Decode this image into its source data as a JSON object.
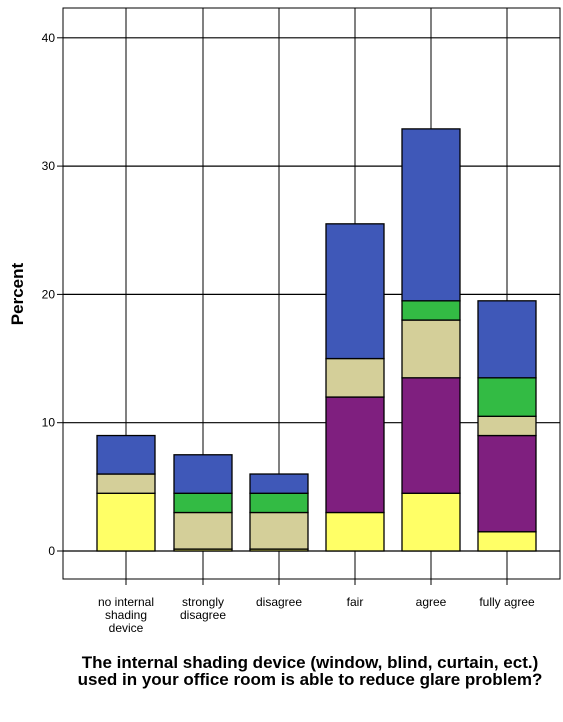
{
  "chart_data": {
    "type": "bar",
    "stacked": true,
    "xlabel": "The internal shading device (window, blind, curtain, ect.) used in your office room is able to reduce glare problem?",
    "ylabel": "Percent",
    "ylim": [
      0,
      42
    ],
    "yticks": [
      0,
      10,
      20,
      30,
      40
    ],
    "grid": true,
    "categories": [
      [
        "no internal",
        "shading",
        "device"
      ],
      [
        "strongly",
        "disagree"
      ],
      [
        "disagree"
      ],
      [
        "fair"
      ],
      [
        "agree"
      ],
      [
        "fully agree"
      ]
    ],
    "series": [
      {
        "color": "#ffff66",
        "values": [
          4.5,
          0.15,
          0.15,
          3.0,
          4.5,
          1.5
        ]
      },
      {
        "color": "#7f1f7f",
        "values": [
          0,
          0,
          0,
          9.0,
          9.0,
          7.5
        ]
      },
      {
        "color": "#d4cf99",
        "values": [
          1.5,
          2.85,
          2.85,
          3.0,
          4.5,
          1.5
        ]
      },
      {
        "color": "#33bb44",
        "values": [
          0,
          1.5,
          1.5,
          0,
          1.5,
          3.0
        ]
      },
      {
        "color": "#3f58b8",
        "values": [
          3.0,
          3.0,
          1.5,
          10.5,
          13.4,
          6.0
        ]
      }
    ]
  }
}
